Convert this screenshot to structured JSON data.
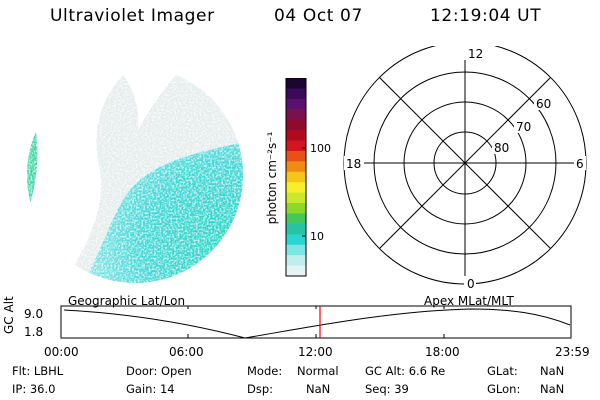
{
  "header": {
    "instrument": "Ultraviolet Imager",
    "date": "04 Oct 07",
    "time": "12:19:04 UT"
  },
  "colorbar": {
    "unit_label": "photon cm⁻²s⁻¹",
    "tick_labels": [
      "100",
      "10"
    ],
    "colors": [
      "#1a0630",
      "#3b0a58",
      "#5a1070",
      "#7a1050",
      "#8e0a2e",
      "#b00a1e",
      "#d4141e",
      "#e8501a",
      "#f08c14",
      "#f6c41a",
      "#f8ee2c",
      "#cde82c",
      "#8cd82a",
      "#42c85c",
      "#26c4a4",
      "#2ad4d0",
      "#7ae6e6",
      "#c0eeee",
      "#e6f4f4"
    ]
  },
  "polar_plot": {
    "lat_labels": [
      "60",
      "70",
      "80"
    ],
    "mlt_labels": {
      "top": "12",
      "bottom": "0",
      "left": "18",
      "right": "6"
    }
  },
  "timeline": {
    "y_label": "GC Alt",
    "y_ticks": [
      "9.0",
      "1.8"
    ],
    "left_title": "Geographic Lat/Lon",
    "right_title": "Apex MLat/MLT",
    "x_ticks": [
      "00:00",
      "06:00",
      "12:00",
      "18:00",
      "23:59"
    ],
    "current_time_color": "#ff0000"
  },
  "info": {
    "flt": "Flt: LBHL",
    "ip": "IP: 36.0",
    "door": "Door: Open",
    "gain": "Gain: 14",
    "mode_label": "Mode:",
    "mode_value": "Normal",
    "dsp_label": "Dsp:",
    "dsp_value": "NaN",
    "gc_alt": "GC Alt: 6.6 Re",
    "seq": "Seq: 39",
    "glat_label": "GLat:",
    "glat_value": "NaN",
    "glon_label": "GLon:",
    "glon_value": "NaN"
  }
}
